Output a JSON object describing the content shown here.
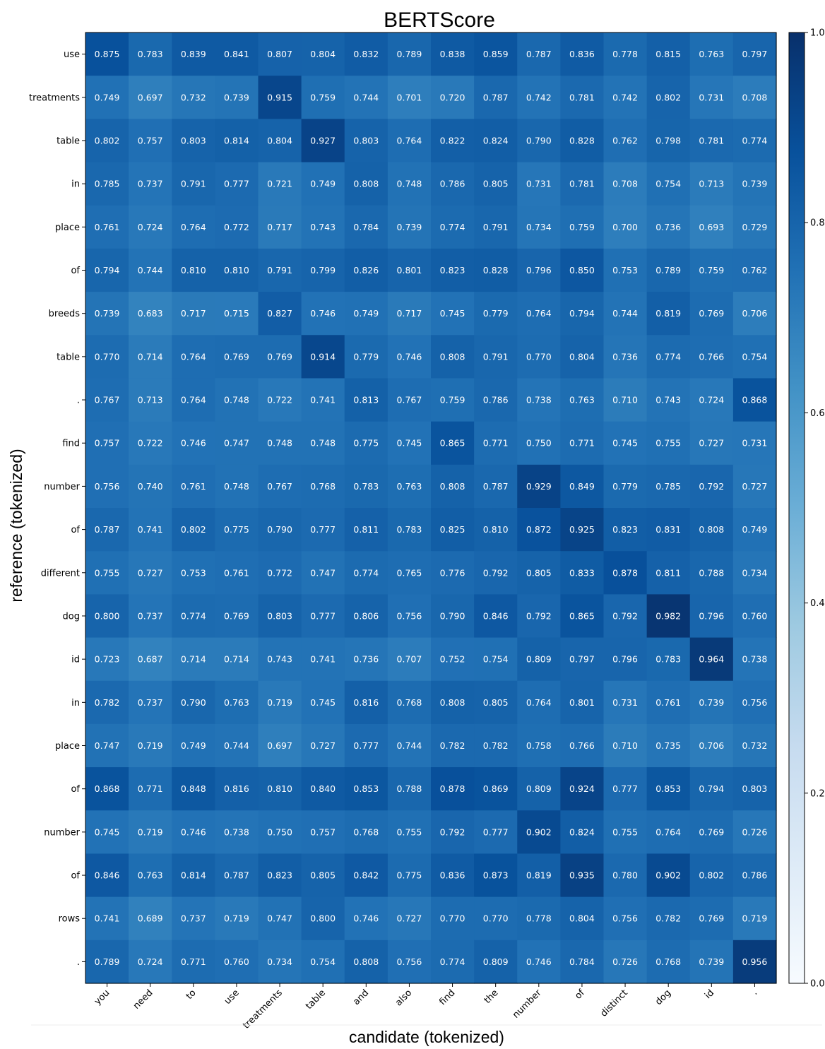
{
  "chart_data": {
    "type": "heatmap",
    "title": "BERTScore",
    "xlabel": "candidate (tokenized)",
    "ylabel": "reference (tokenized)",
    "x_categories": [
      "you",
      "need",
      "to",
      "use",
      "treatments",
      "table",
      "and",
      "also",
      "find",
      "the",
      "number",
      "of",
      "distinct",
      "dog",
      "id",
      "."
    ],
    "y_categories": [
      "use",
      "treatments",
      "table",
      "in",
      "place",
      "of",
      "breeds",
      "table",
      ".",
      "find",
      "number",
      "of",
      "different",
      "dog",
      "id",
      "in",
      "place",
      "of",
      "number",
      "of",
      "rows",
      "."
    ],
    "values": [
      [
        "0.875",
        "0.783",
        "0.839",
        "0.841",
        "0.807",
        "0.804",
        "0.832",
        "0.789",
        "0.838",
        "0.859",
        "0.787",
        "0.836",
        "0.778",
        "0.815",
        "0.763",
        "0.797"
      ],
      [
        "0.749",
        "0.697",
        "0.732",
        "0.739",
        "0.915",
        "0.759",
        "0.744",
        "0.701",
        "0.720",
        "0.787",
        "0.742",
        "0.781",
        "0.742",
        "0.802",
        "0.731",
        "0.708"
      ],
      [
        "0.802",
        "0.757",
        "0.803",
        "0.814",
        "0.804",
        "0.927",
        "0.803",
        "0.764",
        "0.822",
        "0.824",
        "0.790",
        "0.828",
        "0.762",
        "0.798",
        "0.781",
        "0.774"
      ],
      [
        "0.785",
        "0.737",
        "0.791",
        "0.777",
        "0.721",
        "0.749",
        "0.808",
        "0.748",
        "0.786",
        "0.805",
        "0.731",
        "0.781",
        "0.708",
        "0.754",
        "0.713",
        "0.739"
      ],
      [
        "0.761",
        "0.724",
        "0.764",
        "0.772",
        "0.717",
        "0.743",
        "0.784",
        "0.739",
        "0.774",
        "0.791",
        "0.734",
        "0.759",
        "0.700",
        "0.736",
        "0.693",
        "0.729"
      ],
      [
        "0.794",
        "0.744",
        "0.810",
        "0.810",
        "0.791",
        "0.799",
        "0.826",
        "0.801",
        "0.823",
        "0.828",
        "0.796",
        "0.850",
        "0.753",
        "0.789",
        "0.759",
        "0.762"
      ],
      [
        "0.739",
        "0.683",
        "0.717",
        "0.715",
        "0.827",
        "0.746",
        "0.749",
        "0.717",
        "0.745",
        "0.779",
        "0.764",
        "0.794",
        "0.744",
        "0.819",
        "0.769",
        "0.706"
      ],
      [
        "0.770",
        "0.714",
        "0.764",
        "0.769",
        "0.769",
        "0.914",
        "0.779",
        "0.746",
        "0.808",
        "0.791",
        "0.770",
        "0.804",
        "0.736",
        "0.774",
        "0.766",
        "0.754"
      ],
      [
        "0.767",
        "0.713",
        "0.764",
        "0.748",
        "0.722",
        "0.741",
        "0.813",
        "0.767",
        "0.759",
        "0.786",
        "0.738",
        "0.763",
        "0.710",
        "0.743",
        "0.724",
        "0.868"
      ],
      [
        "0.757",
        "0.722",
        "0.746",
        "0.747",
        "0.748",
        "0.748",
        "0.775",
        "0.745",
        "0.865",
        "0.771",
        "0.750",
        "0.771",
        "0.745",
        "0.755",
        "0.727",
        "0.731"
      ],
      [
        "0.756",
        "0.740",
        "0.761",
        "0.748",
        "0.767",
        "0.768",
        "0.783",
        "0.763",
        "0.808",
        "0.787",
        "0.929",
        "0.849",
        "0.779",
        "0.785",
        "0.792",
        "0.727"
      ],
      [
        "0.787",
        "0.741",
        "0.802",
        "0.775",
        "0.790",
        "0.777",
        "0.811",
        "0.783",
        "0.825",
        "0.810",
        "0.872",
        "0.925",
        "0.823",
        "0.831",
        "0.808",
        "0.749"
      ],
      [
        "0.755",
        "0.727",
        "0.753",
        "0.761",
        "0.772",
        "0.747",
        "0.774",
        "0.765",
        "0.776",
        "0.792",
        "0.805",
        "0.833",
        "0.878",
        "0.811",
        "0.788",
        "0.734"
      ],
      [
        "0.800",
        "0.737",
        "0.774",
        "0.769",
        "0.803",
        "0.777",
        "0.806",
        "0.756",
        "0.790",
        "0.846",
        "0.792",
        "0.865",
        "0.792",
        "0.982",
        "0.796",
        "0.760"
      ],
      [
        "0.723",
        "0.687",
        "0.714",
        "0.714",
        "0.743",
        "0.741",
        "0.736",
        "0.707",
        "0.752",
        "0.754",
        "0.809",
        "0.797",
        "0.796",
        "0.783",
        "0.964",
        "0.738"
      ],
      [
        "0.782",
        "0.737",
        "0.790",
        "0.763",
        "0.719",
        "0.745",
        "0.816",
        "0.768",
        "0.808",
        "0.805",
        "0.764",
        "0.801",
        "0.731",
        "0.761",
        "0.739",
        "0.756"
      ],
      [
        "0.747",
        "0.719",
        "0.749",
        "0.744",
        "0.697",
        "0.727",
        "0.777",
        "0.744",
        "0.782",
        "0.782",
        "0.758",
        "0.766",
        "0.710",
        "0.735",
        "0.706",
        "0.732"
      ],
      [
        "0.868",
        "0.771",
        "0.848",
        "0.816",
        "0.810",
        "0.840",
        "0.853",
        "0.788",
        "0.878",
        "0.869",
        "0.809",
        "0.924",
        "0.777",
        "0.853",
        "0.794",
        "0.803"
      ],
      [
        "0.745",
        "0.719",
        "0.746",
        "0.738",
        "0.750",
        "0.757",
        "0.768",
        "0.755",
        "0.792",
        "0.777",
        "0.902",
        "0.824",
        "0.755",
        "0.764",
        "0.769",
        "0.726"
      ],
      [
        "0.846",
        "0.763",
        "0.814",
        "0.787",
        "0.823",
        "0.805",
        "0.842",
        "0.775",
        "0.836",
        "0.873",
        "0.819",
        "0.935",
        "0.780",
        "0.902",
        "0.802",
        "0.786"
      ],
      [
        "0.741",
        "0.689",
        "0.737",
        "0.719",
        "0.747",
        "0.800",
        "0.746",
        "0.727",
        "0.770",
        "0.770",
        "0.778",
        "0.804",
        "0.756",
        "0.782",
        "0.769",
        "0.719"
      ],
      [
        "0.789",
        "0.724",
        "0.771",
        "0.760",
        "0.734",
        "0.754",
        "0.808",
        "0.756",
        "0.774",
        "0.809",
        "0.746",
        "0.784",
        "0.726",
        "0.768",
        "0.739",
        "0.956"
      ]
    ],
    "colormap": "Blues",
    "vmin": 0.0,
    "vmax": 1.0,
    "colorbar_ticks": [
      "0.0",
      "0.2",
      "0.4",
      "0.6",
      "0.8",
      "1.0"
    ],
    "grid": false
  }
}
